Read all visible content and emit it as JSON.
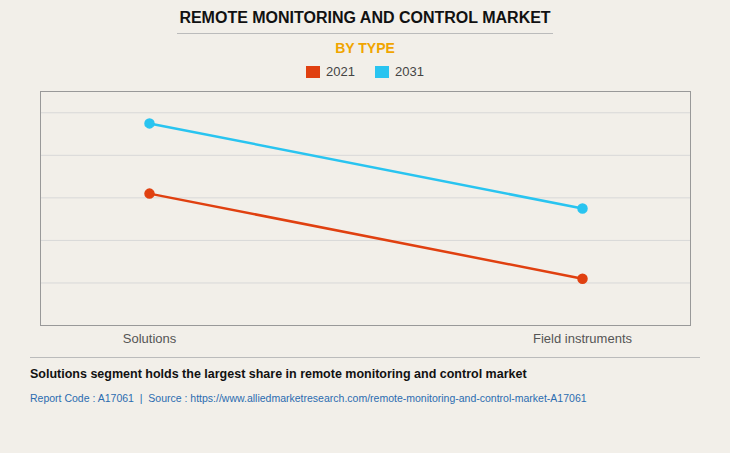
{
  "chart_data": {
    "type": "line",
    "title": "REMOTE MONITORING AND CONTROL MARKET",
    "subtitle": "BY TYPE",
    "categories": [
      "Solutions",
      "Field instruments"
    ],
    "series": [
      {
        "name": "2021",
        "color": "#E04010",
        "values": [
          62,
          22
        ],
        "marker": "circle"
      },
      {
        "name": "2031",
        "color": "#29C4F0",
        "values": [
          95,
          55
        ],
        "marker": "circle"
      }
    ],
    "ylim": [
      0,
      110
    ],
    "yticks": [
      0,
      20,
      40,
      60,
      80,
      100
    ],
    "grid": true,
    "tick_labels": "x",
    "legend": "top",
    "caption": "Solutions segment holds the largest share in remote monitoring and control market",
    "source": "Report Code : A17061  |  Source : https://www.alliedmarketresearch.com/remote-monitoring-and-control-market-A17061"
  }
}
